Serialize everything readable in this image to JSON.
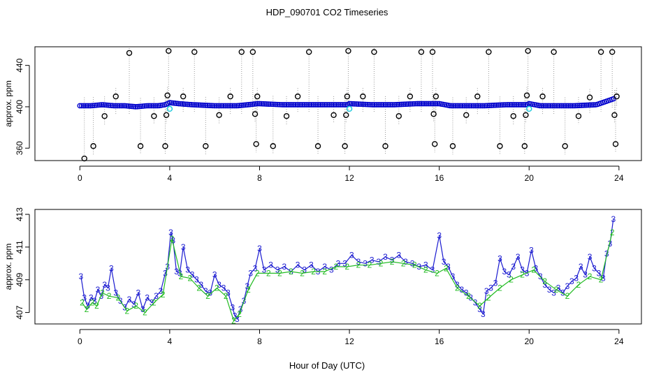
{
  "chart_data": {
    "title": "HDP_090701  CO2 Timeseries",
    "xlabel": "Hour of Day (UTC)",
    "xlim": [
      -2,
      25
    ],
    "xticks": [
      0,
      4,
      8,
      12,
      16,
      20,
      24
    ],
    "panels": [
      {
        "type": "scatter",
        "ylabel": "approx. ppm",
        "ylim": [
          348,
          458
        ],
        "yticks": [
          360,
          400,
          440
        ],
        "colors": {
          "baseline": "#0000cc",
          "calibration": "#22ccdd",
          "spikes": "#000000",
          "drop_lines": "#999999"
        },
        "baseline": [
          [
            0.0,
            401
          ],
          [
            0.5,
            401
          ],
          [
            1.0,
            402
          ],
          [
            1.5,
            401
          ],
          [
            2.0,
            401
          ],
          [
            2.5,
            400
          ],
          [
            3.0,
            401
          ],
          [
            3.5,
            401
          ],
          [
            3.8,
            402
          ],
          [
            4.0,
            404
          ],
          [
            4.4,
            403
          ],
          [
            5.0,
            402
          ],
          [
            6.0,
            401
          ],
          [
            7.0,
            401
          ],
          [
            7.5,
            402
          ],
          [
            7.9,
            403
          ],
          [
            8.0,
            403
          ],
          [
            9.0,
            402
          ],
          [
            10.0,
            402
          ],
          [
            11.0,
            402
          ],
          [
            11.9,
            402
          ],
          [
            12.0,
            403
          ],
          [
            13.0,
            402
          ],
          [
            14.0,
            402
          ],
          [
            15.0,
            403
          ],
          [
            15.9,
            403
          ],
          [
            16.0,
            403
          ],
          [
            16.5,
            401
          ],
          [
            17.0,
            401
          ],
          [
            18.0,
            401
          ],
          [
            19.0,
            402
          ],
          [
            19.9,
            402
          ],
          [
            20.0,
            403
          ],
          [
            20.5,
            401
          ],
          [
            21.0,
            401
          ],
          [
            22.0,
            401
          ],
          [
            23.0,
            402
          ],
          [
            23.8,
            408
          ]
        ],
        "calibration": [
          [
            4.0,
            398
          ],
          [
            12.0,
            398
          ],
          [
            20.0,
            398
          ]
        ],
        "spikes": [
          [
            0.2,
            350
          ],
          [
            0.6,
            362
          ],
          [
            1.1,
            391
          ],
          [
            1.6,
            410
          ],
          [
            2.2,
            452
          ],
          [
            2.7,
            362
          ],
          [
            3.3,
            391
          ],
          [
            3.8,
            362
          ],
          [
            3.85,
            392
          ],
          [
            3.9,
            411
          ],
          [
            3.95,
            454
          ],
          [
            4.6,
            410
          ],
          [
            5.1,
            453
          ],
          [
            5.6,
            362
          ],
          [
            6.2,
            392
          ],
          [
            6.7,
            410
          ],
          [
            7.2,
            453
          ],
          [
            7.7,
            453
          ],
          [
            7.8,
            393
          ],
          [
            7.85,
            364
          ],
          [
            7.9,
            410
          ],
          [
            8.6,
            362
          ],
          [
            9.2,
            391
          ],
          [
            9.7,
            410
          ],
          [
            10.2,
            453
          ],
          [
            10.6,
            362
          ],
          [
            11.3,
            392
          ],
          [
            11.8,
            362
          ],
          [
            11.85,
            392
          ],
          [
            11.9,
            410
          ],
          [
            11.95,
            454
          ],
          [
            12.6,
            410
          ],
          [
            13.1,
            453
          ],
          [
            13.6,
            362
          ],
          [
            14.2,
            391
          ],
          [
            14.7,
            410
          ],
          [
            15.2,
            453
          ],
          [
            15.7,
            453
          ],
          [
            15.75,
            393
          ],
          [
            15.8,
            364
          ],
          [
            15.85,
            410
          ],
          [
            16.6,
            362
          ],
          [
            17.2,
            392
          ],
          [
            17.7,
            410
          ],
          [
            18.2,
            453
          ],
          [
            18.7,
            362
          ],
          [
            19.3,
            391
          ],
          [
            19.8,
            362
          ],
          [
            19.85,
            392
          ],
          [
            19.9,
            411
          ],
          [
            19.95,
            454
          ],
          [
            20.6,
            410
          ],
          [
            21.1,
            453
          ],
          [
            21.6,
            362
          ],
          [
            22.2,
            391
          ],
          [
            22.7,
            409
          ],
          [
            23.2,
            453
          ],
          [
            23.7,
            453
          ],
          [
            23.8,
            392
          ],
          [
            23.85,
            364
          ],
          [
            23.9,
            410
          ]
        ]
      },
      {
        "type": "line",
        "ylabel": "approx. ppm",
        "ylim": [
          406.3,
          413.3
        ],
        "yticks": [
          407,
          409,
          411,
          413
        ],
        "markers": {
          "upper": "3",
          "lower": "2"
        },
        "series": [
          {
            "marker": "3",
            "color": "#1a1ad0",
            "x": [
              0.05,
              0.2,
              0.35,
              0.5,
              0.65,
              0.8,
              0.95,
              1.1,
              1.25,
              1.4,
              1.6,
              1.8,
              2.0,
              2.2,
              2.4,
              2.6,
              2.8,
              3.0,
              3.2,
              3.4,
              3.6,
              3.8,
              3.9,
              4.05,
              4.15,
              4.3,
              4.45,
              4.6,
              4.8,
              5.0,
              5.2,
              5.4,
              5.6,
              5.8,
              6.0,
              6.2,
              6.4,
              6.6,
              6.8,
              6.9,
              7.0,
              7.15,
              7.3,
              7.45,
              7.6,
              7.8,
              8.0,
              8.2,
              8.5,
              8.8,
              9.1,
              9.4,
              9.7,
              10.0,
              10.3,
              10.6,
              10.9,
              11.2,
              11.5,
              11.8,
              12.1,
              12.4,
              12.7,
              13.0,
              13.3,
              13.6,
              13.9,
              14.2,
              14.5,
              14.8,
              15.1,
              15.4,
              15.7,
              16.0,
              16.2,
              16.4,
              16.6,
              16.8,
              17.0,
              17.2,
              17.4,
              17.6,
              17.8,
              17.95,
              18.1,
              18.3,
              18.5,
              18.7,
              18.9,
              19.1,
              19.3,
              19.5,
              19.7,
              19.9,
              20.1,
              20.3,
              20.5,
              20.7,
              20.9,
              21.1,
              21.3,
              21.5,
              21.7,
              21.9,
              22.1,
              22.3,
              22.5,
              22.7,
              22.9,
              23.1,
              23.3,
              23.45,
              23.6,
              23.75
            ],
            "y": [
              409.2,
              407.9,
              407.4,
              407.9,
              407.7,
              408.4,
              408.0,
              408.7,
              408.5,
              409.7,
              408.2,
              407.7,
              407.3,
              407.8,
              407.5,
              408.2,
              407.2,
              407.9,
              407.6,
              408.0,
              408.3,
              409.4,
              409.8,
              411.9,
              411.4,
              409.5,
              409.4,
              411.0,
              409.6,
              409.3,
              409.0,
              408.7,
              408.3,
              408.2,
              409.3,
              408.7,
              408.5,
              408.2,
              407.3,
              406.8,
              406.6,
              407.2,
              407.7,
              408.6,
              409.4,
              409.7,
              410.9,
              409.6,
              409.9,
              409.6,
              409.8,
              409.5,
              409.9,
              409.6,
              409.9,
              409.5,
              409.8,
              409.6,
              410.0,
              410.0,
              410.5,
              410.1,
              410.0,
              410.2,
              410.1,
              410.4,
              410.2,
              410.5,
              410.1,
              410.0,
              409.8,
              409.9,
              409.6,
              411.7,
              410.1,
              409.8,
              409.2,
              408.7,
              408.4,
              408.2,
              407.9,
              407.6,
              407.2,
              406.9,
              408.3,
              408.5,
              408.8,
              410.3,
              409.5,
              409.3,
              409.8,
              410.4,
              409.6,
              409.4,
              410.8,
              409.7,
              409.2,
              408.7,
              408.4,
              408.2,
              408.5,
              408.2,
              408.6,
              408.9,
              409.1,
              409.8,
              409.3,
              410.4,
              409.7,
              409.4,
              409.1,
              410.6,
              411.2,
              412.7
            ]
          },
          {
            "marker": "2",
            "color": "#22bb22",
            "x": [
              0.1,
              0.3,
              0.55,
              0.75,
              1.0,
              1.3,
              1.7,
              2.1,
              2.5,
              2.9,
              3.3,
              3.7,
              4.1,
              4.5,
              4.9,
              5.3,
              5.7,
              6.1,
              6.5,
              6.85,
              7.1,
              7.5,
              7.9,
              8.4,
              8.9,
              9.4,
              9.9,
              10.4,
              10.9,
              11.4,
              11.9,
              12.4,
              12.9,
              13.4,
              13.9,
              14.4,
              14.9,
              15.4,
              15.9,
              16.3,
              16.8,
              17.3,
              17.8,
              18.2,
              18.7,
              19.2,
              19.7,
              20.2,
              20.7,
              21.2,
              21.7,
              22.2,
              22.7,
              23.2,
              23.7
            ],
            "y": [
              407.6,
              407.2,
              407.6,
              407.4,
              408.2,
              408.0,
              407.9,
              407.1,
              407.4,
              407.0,
              407.6,
              408.1,
              411.5,
              409.2,
              409.1,
              408.5,
              408.0,
              408.5,
              408.0,
              406.5,
              406.9,
              408.4,
              409.4,
              409.4,
              409.4,
              409.5,
              409.4,
              409.5,
              409.5,
              409.8,
              409.8,
              409.9,
              409.9,
              410.0,
              410.1,
              410.0,
              409.9,
              409.6,
              409.4,
              409.7,
              408.5,
              408.0,
              407.4,
              407.9,
              408.5,
              409.0,
              409.3,
              409.6,
              408.9,
              408.4,
              408.0,
              408.7,
              409.2,
              409.0,
              411.9
            ]
          }
        ]
      }
    ]
  }
}
